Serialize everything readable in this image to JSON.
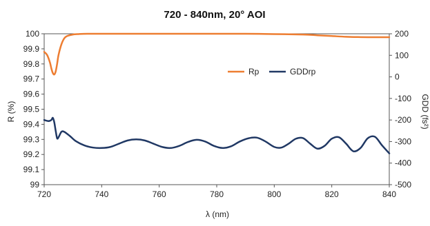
{
  "chart_data": {
    "type": "line",
    "title": "720 - 840nm, 20° AOI",
    "xlabel": "λ (nm)",
    "ylabel_left": "R (%)",
    "ylabel_right": "GDD (fs²)",
    "x_range": [
      720,
      840
    ],
    "x_ticks": [
      720,
      740,
      760,
      780,
      800,
      820,
      840
    ],
    "y_left_range": [
      99,
      100
    ],
    "y_left_ticks": [
      "99",
      "99.1",
      "99.2",
      "99.3",
      "99.4",
      "99.5",
      "99.6",
      "99.7",
      "99.8",
      "99.9",
      "100"
    ],
    "y_right_range": [
      -500,
      200
    ],
    "y_right_ticks": [
      "-500",
      "-400",
      "-300",
      "-200",
      "-100",
      "0",
      "100",
      "200"
    ],
    "grid": false,
    "legend_position": "upper-right",
    "series": [
      {
        "name": "Rp",
        "axis": "left",
        "color": "#ed7d31",
        "x": [
          720,
          721,
          722,
          722.5,
          723,
          723.5,
          724,
          724.5,
          725,
          726,
          727,
          728,
          730,
          732,
          735,
          740,
          750,
          760,
          770,
          780,
          790,
          800,
          810,
          815,
          820,
          825,
          830,
          835,
          840
        ],
        "y": [
          99.88,
          99.86,
          99.81,
          99.77,
          99.74,
          99.73,
          99.75,
          99.8,
          99.86,
          99.93,
          99.97,
          99.985,
          99.995,
          99.998,
          100.0,
          100.0,
          100.0,
          100.0,
          100.0,
          100.0,
          100.0,
          99.998,
          99.995,
          99.99,
          99.985,
          99.98,
          99.978,
          99.977,
          99.977
        ]
      },
      {
        "name": "GDDrp",
        "axis": "right",
        "color": "#203864",
        "x": [
          720,
          721.5,
          722.5,
          723,
          723.5,
          724,
          724.5,
          725,
          726,
          727,
          729,
          731,
          734,
          737,
          740,
          743,
          746,
          749,
          752,
          755,
          758,
          761,
          764,
          767,
          770,
          773,
          776,
          779,
          782,
          785,
          788,
          791,
          794,
          797,
          800,
          802.5,
          805,
          807.5,
          810,
          812.5,
          815,
          817.5,
          820,
          822.5,
          825,
          827.5,
          830,
          832.5,
          835,
          837.5,
          840
        ],
        "y": [
          -200,
          -205,
          -200,
          -190,
          -210,
          -250,
          -285,
          -280,
          -255,
          -255,
          -275,
          -298,
          -318,
          -328,
          -330,
          -325,
          -310,
          -295,
          -290,
          -295,
          -310,
          -325,
          -330,
          -320,
          -302,
          -292,
          -300,
          -320,
          -330,
          -322,
          -300,
          -285,
          -282,
          -300,
          -325,
          -328,
          -310,
          -287,
          -284,
          -310,
          -333,
          -320,
          -287,
          -280,
          -310,
          -345,
          -330,
          -285,
          -278,
          -318,
          -355
        ]
      }
    ]
  }
}
